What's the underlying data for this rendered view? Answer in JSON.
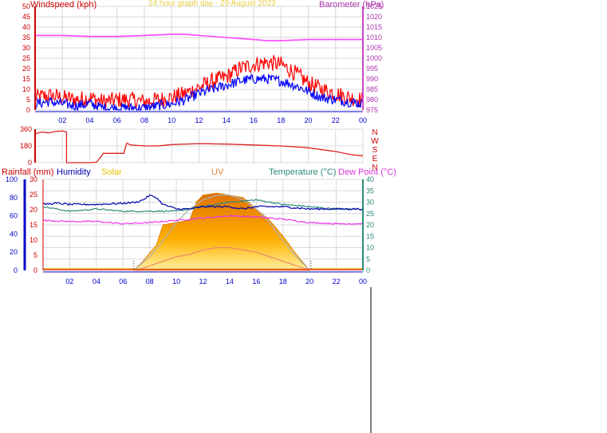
{
  "colors": {
    "windspeed": "#ff0000",
    "gust": "#ee1111",
    "avgwind": "#0000ff",
    "barometer": "#ff44ff",
    "direction": "#dd2222",
    "humidity": "#0000aa",
    "temperature": "#2a8a7a",
    "dewpoint": "#ee33ee",
    "solar": "#ffb000",
    "solar_max": "#b0b0b0",
    "uv": "#ee8866",
    "rainfall": "#cc0000",
    "grid": "#d8d8d8",
    "axis": "#0000cc"
  },
  "header": {
    "title": "24 hour graph day - 29 August 2023"
  },
  "chart_data": [
    {
      "type": "line",
      "name": "wind-barometer",
      "left_label": "Windspeed (kph)",
      "right_label": "Barometer (hPa)",
      "y_left_ticks": [
        "0",
        "5",
        "10",
        "15",
        "20",
        "25",
        "30",
        "35",
        "40",
        "45",
        "50"
      ],
      "y_right_ticks": [
        "975",
        "980",
        "985",
        "990",
        "995",
        "1000",
        "1005",
        "1010",
        "1015",
        "1020",
        "1025"
      ],
      "ylim_left": [
        0,
        50
      ],
      "ylim_right": [
        975,
        1025
      ],
      "x_ticks": [
        "02",
        "04",
        "06",
        "08",
        "10",
        "12",
        "14",
        "16",
        "18",
        "20",
        "22",
        "00"
      ],
      "xlim": [
        0,
        24
      ],
      "series": [
        {
          "key": "gust",
          "x": [
            0,
            1,
            2,
            3,
            4,
            5,
            6,
            7,
            8,
            9,
            10,
            11,
            12,
            13,
            14,
            15,
            16,
            17,
            18,
            19,
            20,
            21,
            22,
            23,
            24
          ],
          "y": [
            6,
            7,
            6,
            5,
            6,
            4,
            5,
            5,
            4,
            5,
            6,
            8,
            11,
            14,
            16,
            20,
            22,
            23,
            22,
            18,
            13,
            10,
            8,
            6,
            5
          ]
        },
        {
          "key": "avgwind",
          "x": [
            0,
            1,
            2,
            3,
            4,
            5,
            6,
            7,
            8,
            9,
            10,
            11,
            12,
            13,
            14,
            15,
            16,
            17,
            18,
            19,
            20,
            21,
            22,
            23,
            24
          ],
          "y": [
            3,
            4,
            3,
            2,
            3,
            1,
            1,
            1,
            1,
            2,
            3,
            5,
            8,
            10,
            12,
            14,
            15,
            15,
            14,
            12,
            9,
            6,
            5,
            4,
            3
          ]
        },
        {
          "key": "barometer",
          "x": [
            0,
            2,
            4,
            6,
            8,
            10,
            11,
            12,
            14,
            16,
            17,
            18,
            20,
            22,
            24
          ],
          "y": [
            1011,
            1011,
            1010.5,
            1010.5,
            1011,
            1011.5,
            1011.5,
            1011,
            1010,
            1009,
            1008.5,
            1008.5,
            1009,
            1009,
            1009
          ]
        }
      ]
    },
    {
      "type": "line",
      "name": "wind-direction",
      "y_left_ticks": [
        "0",
        "180",
        "360"
      ],
      "ylim": [
        0,
        360
      ],
      "compass_labels": [
        "N",
        "W",
        "S",
        "E",
        "N"
      ],
      "xlim": [
        0,
        24
      ],
      "series": [
        {
          "key": "direction",
          "x": [
            0,
            0.5,
            1,
            1.5,
            2,
            2.3,
            2.3,
            3,
            4,
            4.5,
            5,
            6,
            6.5,
            6.7,
            7,
            8,
            9,
            10,
            12,
            14,
            16,
            18,
            20,
            21,
            22,
            23,
            23.5,
            24
          ],
          "y": [
            310,
            330,
            320,
            335,
            340,
            330,
            0,
            0,
            0,
            5,
            100,
            100,
            100,
            210,
            190,
            180,
            180,
            195,
            205,
            200,
            190,
            180,
            160,
            140,
            120,
            90,
            80,
            75
          ]
        }
      ]
    },
    {
      "type": "line",
      "name": "humidity-temperature-solar",
      "legend": [
        "Rainfall (mm)",
        "Humidity",
        "Solar",
        "UV",
        "Temperature (°C)",
        "Dew Point (°C)"
      ],
      "y_humidity_ticks": [
        "0",
        "20",
        "40",
        "60",
        "80",
        "100"
      ],
      "y_rain_ticks": [
        "0",
        "5",
        "10",
        "15",
        "20",
        "25",
        "30"
      ],
      "y_temp_ticks": [
        "0",
        "5",
        "10",
        "15",
        "20",
        "25",
        "30",
        "35",
        "40"
      ],
      "ylim_temp": [
        0,
        40
      ],
      "x_ticks": [
        "02",
        "04",
        "06",
        "08",
        "10",
        "12",
        "14",
        "16",
        "18",
        "20",
        "22",
        "00"
      ],
      "xlim": [
        0,
        24
      ],
      "sunrise_hour": 6.8,
      "sunset_hour": 20.1,
      "series": [
        {
          "key": "humidity",
          "x": [
            0,
            1,
            2,
            4,
            6,
            7,
            7.5,
            8,
            8.5,
            9,
            10,
            11,
            12,
            14,
            15,
            16,
            18,
            20,
            22,
            24
          ],
          "y": [
            29,
            29.5,
            29,
            29,
            29.5,
            30,
            31,
            33,
            32,
            29,
            27,
            27,
            28,
            28,
            27,
            28,
            28,
            27,
            27,
            27
          ]
        },
        {
          "key": "temperature",
          "x": [
            0,
            2,
            4,
            6,
            8,
            10,
            12,
            14,
            16,
            18,
            20,
            22,
            24
          ],
          "y": [
            28,
            26,
            27,
            26,
            26,
            26,
            28,
            30,
            31,
            29,
            28,
            27,
            27
          ]
        },
        {
          "key": "dewpoint",
          "x": [
            0,
            2,
            4,
            6,
            8,
            10,
            12,
            14,
            16,
            18,
            20,
            22,
            24
          ],
          "y": [
            22,
            21.5,
            21.5,
            20.5,
            21,
            22,
            23,
            24,
            23.5,
            22.5,
            21,
            20.5,
            20.5
          ]
        },
        {
          "key": "solar",
          "x": [
            6.8,
            7.5,
            8.5,
            9,
            10,
            11,
            11.5,
            12,
            13,
            14,
            15,
            16,
            17,
            18,
            19,
            20
          ],
          "y": [
            0,
            4,
            11,
            20,
            21,
            22,
            30,
            33,
            34,
            33,
            32,
            27,
            22,
            15,
            7,
            0
          ]
        },
        {
          "key": "solar_max",
          "x": [
            6.8,
            8,
            9,
            10,
            11,
            12,
            13,
            14,
            15,
            16,
            17,
            18,
            19,
            20
          ],
          "y": [
            0,
            6,
            13,
            21,
            27,
            31,
            33,
            33,
            31,
            27,
            21,
            13,
            6,
            0
          ]
        },
        {
          "key": "uv",
          "x": [
            7,
            8,
            9,
            10,
            11,
            12,
            13,
            14,
            15,
            16,
            17,
            18,
            19,
            20
          ],
          "y": [
            0,
            2,
            4,
            6,
            7,
            9,
            10,
            10,
            9,
            8,
            6,
            4,
            2,
            0
          ]
        },
        {
          "key": "rainfall",
          "x": [
            0,
            24
          ],
          "y": [
            0,
            0
          ]
        }
      ]
    }
  ]
}
